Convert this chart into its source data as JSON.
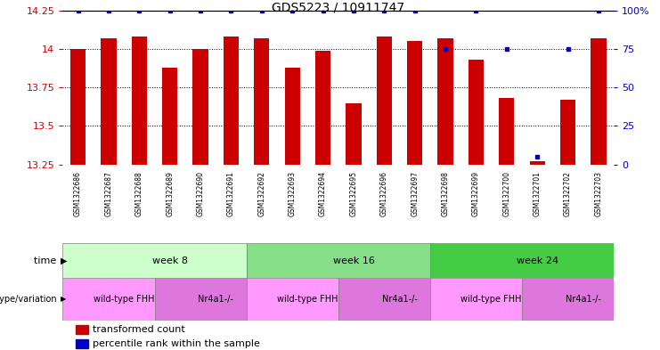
{
  "title": "GDS5223 / 10911747",
  "samples": [
    "GSM1322686",
    "GSM1322687",
    "GSM1322688",
    "GSM1322689",
    "GSM1322690",
    "GSM1322691",
    "GSM1322692",
    "GSM1322693",
    "GSM1322694",
    "GSM1322695",
    "GSM1322696",
    "GSM1322697",
    "GSM1322698",
    "GSM1322699",
    "GSM1322700",
    "GSM1322701",
    "GSM1322702",
    "GSM1322703"
  ],
  "bar_values": [
    14.0,
    14.07,
    14.08,
    13.88,
    14.0,
    14.08,
    14.07,
    13.88,
    13.99,
    13.65,
    14.08,
    14.05,
    14.07,
    13.93,
    13.68,
    13.27,
    13.67,
    14.07
  ],
  "percentile_values": [
    100,
    100,
    100,
    100,
    100,
    100,
    100,
    100,
    100,
    100,
    100,
    100,
    75,
    100,
    75,
    5,
    75,
    100
  ],
  "bar_color": "#cc0000",
  "percentile_color": "#0000cc",
  "ymin": 13.25,
  "ymax": 14.25,
  "yticks": [
    13.25,
    13.5,
    13.75,
    14.0,
    14.25
  ],
  "ytick_labels": [
    "13.25",
    "13.5",
    "13.75",
    "14",
    "14.25"
  ],
  "right_yticks": [
    0,
    25,
    50,
    75,
    100
  ],
  "right_ytick_labels": [
    "0",
    "25",
    "50",
    "75",
    "100%"
  ],
  "time_groups": [
    {
      "label": "week 8",
      "start": 0,
      "end": 6,
      "color": "#ccffcc"
    },
    {
      "label": "week 16",
      "start": 6,
      "end": 12,
      "color": "#88dd88"
    },
    {
      "label": "week 24",
      "start": 12,
      "end": 18,
      "color": "#44cc44"
    }
  ],
  "genotype_groups": [
    {
      "label": "wild-type FHH",
      "start": 0,
      "end": 3,
      "color": "#ff99ff"
    },
    {
      "label": "Nr4a1-/-",
      "start": 3,
      "end": 6,
      "color": "#dd77dd"
    },
    {
      "label": "wild-type FHH",
      "start": 6,
      "end": 9,
      "color": "#ff99ff"
    },
    {
      "label": "Nr4a1-/-",
      "start": 9,
      "end": 12,
      "color": "#dd77dd"
    },
    {
      "label": "wild-type FHH",
      "start": 12,
      "end": 15,
      "color": "#ff99ff"
    },
    {
      "label": "Nr4a1-/-",
      "start": 15,
      "end": 18,
      "color": "#dd77dd"
    }
  ],
  "bar_color_legend": "#cc0000",
  "percentile_color_legend": "#0000cc",
  "left_axis_color": "#cc0000",
  "right_axis_color": "#0000cc"
}
